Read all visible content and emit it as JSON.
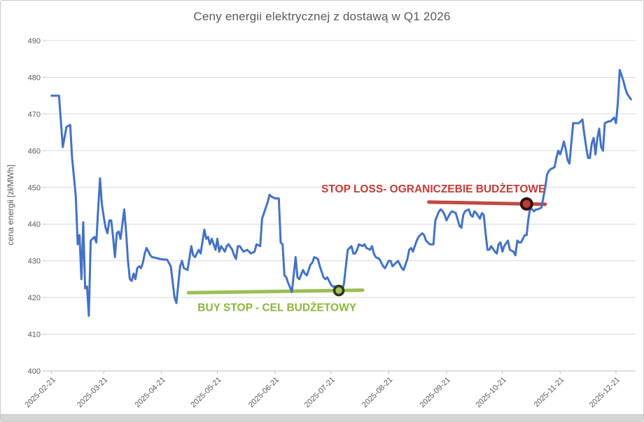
{
  "chart_data": {
    "type": "line",
    "title": "Ceny energii elektrycznej z dostawą w Q1 2026",
    "xlabel": "",
    "ylabel": "cena energii [zł/MWh]",
    "ylim": [
      400,
      490
    ],
    "y_ticks": [
      400,
      410,
      420,
      430,
      440,
      450,
      460,
      470,
      480,
      490
    ],
    "x_tick_labels": [
      "2025-02-21",
      "2025-03-21",
      "2025-04-21",
      "2025-05-21",
      "2025-06-21",
      "2025-07-21",
      "2025-08-21",
      "2025-09-21",
      "2025-10-21",
      "2025-11-21",
      "2025-12-21"
    ],
    "x_tick_days": [
      0,
      28,
      59,
      89,
      120,
      150,
      181,
      212,
      242,
      273,
      303
    ],
    "grid": "horizontal",
    "legend": "none",
    "colors": {
      "series_blue": "#4472C4",
      "grid": "#D9D9D9",
      "axis": "#BFBFBF",
      "tick_text": "#595959",
      "title_text": "#595959"
    },
    "series": [
      {
        "name": "cena energii",
        "color": "#4472C4",
        "points": [
          [
            0,
            475
          ],
          [
            2,
            475
          ],
          [
            4,
            475
          ],
          [
            6,
            461
          ],
          [
            8,
            466.5
          ],
          [
            10,
            467
          ],
          [
            11,
            458
          ],
          [
            13,
            447.5
          ],
          [
            14,
            434.5
          ],
          [
            15,
            437
          ],
          [
            16,
            425
          ],
          [
            17,
            440.5
          ],
          [
            18,
            422.5
          ],
          [
            19,
            423
          ],
          [
            20,
            415
          ],
          [
            21,
            435.5
          ],
          [
            22,
            436
          ],
          [
            23,
            436.5
          ],
          [
            24,
            435
          ],
          [
            25,
            444
          ],
          [
            26,
            452.5
          ],
          [
            27,
            445.5
          ],
          [
            28,
            442
          ],
          [
            29,
            439
          ],
          [
            30,
            437.5
          ],
          [
            31,
            441
          ],
          [
            32,
            441
          ],
          [
            33,
            436.5
          ],
          [
            34,
            431
          ],
          [
            35,
            437.5
          ],
          [
            36,
            438
          ],
          [
            37,
            436
          ],
          [
            39,
            444
          ],
          [
            40,
            438
          ],
          [
            41,
            430
          ],
          [
            42,
            425
          ],
          [
            43,
            424.5
          ],
          [
            44,
            426.5
          ],
          [
            45,
            425
          ],
          [
            46,
            428
          ],
          [
            47,
            428.5
          ],
          [
            48,
            428
          ],
          [
            49,
            429.5
          ],
          [
            50,
            432
          ],
          [
            51,
            433.5
          ],
          [
            53,
            431.5
          ],
          [
            54,
            431
          ],
          [
            56,
            430.8
          ],
          [
            58,
            430.5
          ],
          [
            60,
            430.4
          ],
          [
            62,
            430.3
          ],
          [
            64,
            428.5
          ],
          [
            66,
            420
          ],
          [
            67,
            418.5
          ],
          [
            69,
            428.5
          ],
          [
            70,
            430
          ],
          [
            71,
            428
          ],
          [
            73,
            427.5
          ],
          [
            75,
            434
          ],
          [
            76,
            431.5
          ],
          [
            77,
            431
          ],
          [
            79,
            433
          ],
          [
            80,
            432
          ],
          [
            82,
            438.5
          ],
          [
            83,
            436
          ],
          [
            84,
            436.5
          ],
          [
            85,
            434.5
          ],
          [
            86,
            436
          ],
          [
            88,
            433
          ],
          [
            89,
            436
          ],
          [
            90,
            432.5
          ],
          [
            91,
            434
          ],
          [
            93,
            432.5
          ],
          [
            94,
            434
          ],
          [
            95,
            434.5
          ],
          [
            97,
            433
          ],
          [
            98,
            431.5
          ],
          [
            99,
            430.5
          ],
          [
            100,
            434
          ],
          [
            101,
            434
          ],
          [
            103,
            432.5
          ],
          [
            105,
            433
          ],
          [
            107,
            432
          ],
          [
            109,
            432.5
          ],
          [
            110,
            434.5
          ],
          [
            112,
            434
          ],
          [
            113,
            441.5
          ],
          [
            114,
            443
          ],
          [
            116,
            446
          ],
          [
            117,
            448
          ],
          [
            118,
            447.5
          ],
          [
            120,
            447
          ],
          [
            122,
            447
          ],
          [
            123,
            435
          ],
          [
            124,
            434.5
          ],
          [
            125,
            426
          ],
          [
            126,
            425.5
          ],
          [
            127,
            424
          ],
          [
            129,
            421.5
          ],
          [
            131,
            431
          ],
          [
            132,
            425.5
          ],
          [
            133,
            425
          ],
          [
            135,
            427.5
          ],
          [
            136,
            426.5
          ],
          [
            137,
            426
          ],
          [
            139,
            429
          ],
          [
            140,
            429.5
          ],
          [
            141,
            431
          ],
          [
            143,
            430.5
          ],
          [
            144,
            428.5
          ],
          [
            146,
            425.5
          ],
          [
            147,
            425
          ],
          [
            148,
            425.5
          ],
          [
            150,
            423.5
          ],
          [
            151,
            423
          ],
          [
            153,
            423
          ],
          [
            154,
            422
          ],
          [
            156,
            421.5
          ],
          [
            157,
            424
          ],
          [
            158,
            428.5
          ],
          [
            159,
            433
          ],
          [
            161,
            434
          ],
          [
            162,
            432
          ],
          [
            163,
            432
          ],
          [
            164,
            433
          ],
          [
            165,
            434.5
          ],
          [
            167,
            434
          ],
          [
            168,
            434.5
          ],
          [
            169,
            433.5
          ],
          [
            171,
            433
          ],
          [
            172,
            434
          ],
          [
            173,
            432
          ],
          [
            174,
            431
          ],
          [
            176,
            430.5
          ],
          [
            178,
            428.5
          ],
          [
            179,
            428
          ],
          [
            181,
            430
          ],
          [
            182,
            430
          ],
          [
            183,
            428.5
          ],
          [
            184,
            429
          ],
          [
            186,
            430
          ],
          [
            188,
            428
          ],
          [
            189,
            427.5
          ],
          [
            191,
            430.5
          ],
          [
            192,
            433
          ],
          [
            193,
            433.5
          ],
          [
            194,
            432.5
          ],
          [
            196,
            435.5
          ],
          [
            197,
            436.5
          ],
          [
            199,
            437.5
          ],
          [
            200,
            437
          ],
          [
            201,
            435.5
          ],
          [
            203,
            434.5
          ],
          [
            205,
            434.5
          ],
          [
            206,
            441
          ],
          [
            208,
            443.5
          ],
          [
            209,
            444
          ],
          [
            210,
            443.5
          ],
          [
            211,
            442.5
          ],
          [
            212,
            441
          ],
          [
            214,
            443
          ],
          [
            215,
            443.5
          ],
          [
            217,
            443
          ],
          [
            219,
            439.5
          ],
          [
            220,
            439
          ],
          [
            221,
            442.5
          ],
          [
            222,
            443.5
          ],
          [
            224,
            444
          ],
          [
            225,
            442.5
          ],
          [
            226,
            442
          ],
          [
            227,
            443.5
          ],
          [
            228,
            443
          ],
          [
            230,
            441.5
          ],
          [
            231,
            443
          ],
          [
            232,
            442.5
          ],
          [
            233,
            437.5
          ],
          [
            234,
            433
          ],
          [
            235,
            433
          ],
          [
            236,
            434
          ],
          [
            238,
            432.5
          ],
          [
            239,
            432
          ],
          [
            240,
            434.5
          ],
          [
            241,
            435
          ],
          [
            242,
            432.5
          ],
          [
            243,
            434
          ],
          [
            245,
            435.5
          ],
          [
            246,
            433
          ],
          [
            248,
            432.5
          ],
          [
            249,
            431.5
          ],
          [
            250,
            435.5
          ],
          [
            251,
            435
          ],
          [
            252,
            435
          ],
          [
            254,
            437
          ],
          [
            255,
            437
          ],
          [
            256,
            441.5
          ],
          [
            257,
            444.5
          ],
          [
            258,
            444
          ],
          [
            259,
            443.5
          ],
          [
            260,
            444
          ],
          [
            261,
            444
          ],
          [
            263,
            444.5
          ],
          [
            265,
            450
          ],
          [
            266,
            453.5
          ],
          [
            267,
            454.5
          ],
          [
            268,
            455
          ],
          [
            270,
            455.5
          ],
          [
            271,
            458
          ],
          [
            272,
            460
          ],
          [
            273,
            459
          ],
          [
            274,
            460.5
          ],
          [
            275,
            462.5
          ],
          [
            276,
            460.5
          ],
          [
            277,
            457.5
          ],
          [
            278,
            456.5
          ],
          [
            280,
            467.5
          ],
          [
            281,
            467.5
          ],
          [
            282,
            467.5
          ],
          [
            283,
            467.5
          ],
          [
            285,
            468.5
          ],
          [
            286,
            464.5
          ],
          [
            287,
            461
          ],
          [
            288,
            458
          ],
          [
            289,
            458
          ],
          [
            290,
            462
          ],
          [
            291,
            463.5
          ],
          [
            292,
            459
          ],
          [
            293,
            463.5
          ],
          [
            294,
            466
          ],
          [
            295,
            461
          ],
          [
            296,
            460
          ],
          [
            297,
            467.5
          ],
          [
            299,
            468
          ],
          [
            300,
            468
          ],
          [
            302,
            469
          ],
          [
            303,
            467.5
          ],
          [
            304,
            473
          ],
          [
            305,
            482
          ],
          [
            306,
            480.5
          ],
          [
            307,
            479
          ],
          [
            308,
            477
          ],
          [
            309,
            475.5
          ],
          [
            311,
            474
          ]
        ]
      }
    ],
    "annotations": {
      "buy_stop": {
        "label": "BUY STOP - CEL BUDŻETOWY",
        "line_color": "#9CBF55",
        "text_color": "#8CB43E",
        "day_from": 73.5,
        "day_to": 167,
        "y_from": 421.3,
        "y_to": 422,
        "marker": {
          "day": 154.2,
          "value": 421.9,
          "ring_color": "#2F3617",
          "fill_color": "#A4C45F"
        },
        "label_pos": {
          "day": 121,
          "value": 417.3
        }
      },
      "stop_loss": {
        "label": "STOP LOSS- OGRANICZEBIE BUDŻETOWE",
        "line_color": "#C04B44",
        "text_color": "#C23E3A",
        "day_from": 202.5,
        "day_to": 265,
        "y_from": 446,
        "y_to": 445.4,
        "marker": {
          "day": 255,
          "value": 445.5,
          "ring_color": "#35100E",
          "fill_color": "#B5403B"
        },
        "label_pos": {
          "day": 205,
          "value": 449.6
        }
      }
    }
  }
}
